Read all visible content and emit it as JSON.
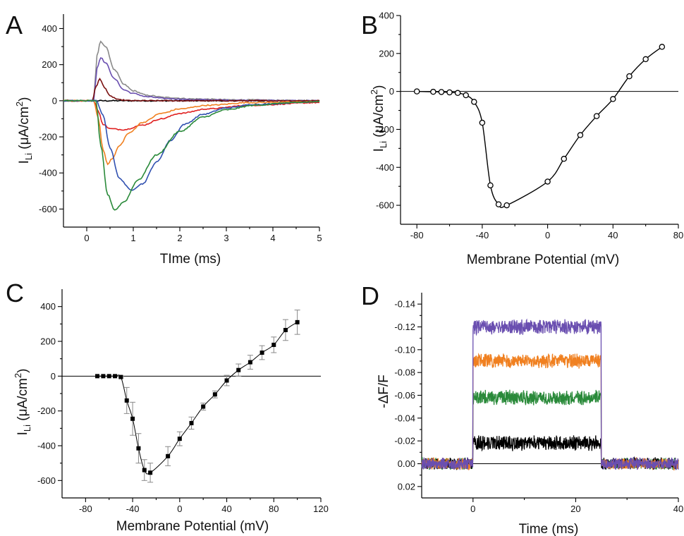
{
  "chart_data": [
    {
      "id": "A",
      "type": "line",
      "panel_label": "A",
      "xlabel": "TIme (ms)",
      "ylabel": "I",
      "ylabel_sub": "Li",
      "ylabel_unit": "(μA/cm",
      "ylabel_sup": "2",
      "ylabel_close": ")",
      "xlim": [
        -0.5,
        5
      ],
      "ylim": [
        -700,
        480
      ],
      "x_ticks": [
        0,
        1,
        2,
        3,
        4,
        5
      ],
      "y_ticks": [
        -600,
        -400,
        -200,
        0,
        200,
        400
      ],
      "series": [
        {
          "color": "#000000",
          "x": [
            -0.5,
            0.2,
            0.4,
            0.6,
            5
          ],
          "y": [
            0,
            0,
            0,
            0,
            0
          ]
        },
        {
          "color": "#8a8a8a",
          "x": [
            -0.5,
            0.15,
            0.22,
            0.3,
            0.4,
            0.6,
            0.8,
            1.0,
            1.3,
            1.7,
            2.3,
            3.2,
            5
          ],
          "y": [
            0,
            0,
            250,
            330,
            300,
            170,
            90,
            55,
            30,
            18,
            10,
            5,
            0
          ]
        },
        {
          "color": "#6a4fb0",
          "x": [
            -0.5,
            0.15,
            0.22,
            0.3,
            0.4,
            0.6,
            0.8,
            1.0,
            1.3,
            1.7,
            2.3,
            3.2,
            5
          ],
          "y": [
            0,
            0,
            180,
            240,
            210,
            120,
            60,
            40,
            22,
            12,
            6,
            3,
            0
          ]
        },
        {
          "color": "#7a1010",
          "x": [
            -0.5,
            0.12,
            0.2,
            0.28,
            0.38,
            0.5,
            0.7,
            1.0,
            5
          ],
          "y": [
            0,
            0,
            80,
            120,
            75,
            25,
            5,
            0,
            0
          ]
        },
        {
          "color": "#e02020",
          "x": [
            -0.5,
            0.15,
            0.25,
            0.35,
            0.5,
            0.8,
            1.2,
            1.6,
            2.0,
            2.6,
            3.5,
            5
          ],
          "y": [
            0,
            0,
            -60,
            -130,
            -155,
            -160,
            -135,
            -100,
            -70,
            -45,
            -25,
            -10
          ]
        },
        {
          "color": "#f08020",
          "x": [
            -0.5,
            0.15,
            0.25,
            0.35,
            0.45,
            0.55,
            0.7,
            0.9,
            1.2,
            1.6,
            2.0,
            2.6,
            3.5,
            5
          ],
          "y": [
            0,
            0,
            -100,
            -270,
            -350,
            -320,
            -250,
            -180,
            -120,
            -70,
            -45,
            -25,
            -10,
            -5
          ]
        },
        {
          "color": "#3050b0",
          "x": [
            -0.5,
            0.2,
            0.35,
            0.5,
            0.7,
            0.95,
            1.2,
            1.5,
            1.8,
            2.1,
            2.5,
            3.0,
            3.6,
            5
          ],
          "y": [
            0,
            0,
            -80,
            -260,
            -430,
            -495,
            -460,
            -340,
            -220,
            -130,
            -75,
            -40,
            -20,
            -5
          ]
        },
        {
          "color": "#2a8a3a",
          "x": [
            -0.5,
            0.2,
            0.3,
            0.45,
            0.6,
            0.8,
            1.1,
            1.5,
            2.0,
            2.5,
            3.0,
            3.6,
            4.3,
            5
          ],
          "y": [
            0,
            0,
            -250,
            -520,
            -605,
            -560,
            -440,
            -300,
            -170,
            -90,
            -50,
            -25,
            -12,
            -5
          ]
        }
      ]
    },
    {
      "id": "B",
      "type": "scatter",
      "panel_label": "B",
      "xlabel": "Membrane Potential (mV)",
      "ylabel": "I",
      "ylabel_sub": "Li",
      "ylabel_unit": "(μA/cm",
      "ylabel_sup": "2",
      "ylabel_close": ")",
      "xlim": [
        -90,
        80
      ],
      "ylim": [
        -700,
        400
      ],
      "x_ticks": [
        -80,
        -40,
        0,
        40,
        80
      ],
      "x_tick_labels": [
        "-80",
        "-40",
        "0",
        "40",
        "80"
      ],
      "y_ticks": [
        -600,
        -400,
        -200,
        0,
        200,
        400
      ],
      "x": [
        -80,
        -70,
        -65,
        -60,
        -55,
        -50,
        -45,
        -40,
        -35,
        -30,
        -25,
        0,
        10,
        20,
        30,
        40,
        50,
        60,
        70
      ],
      "y": [
        0,
        -2,
        -3,
        -5,
        -8,
        -20,
        -55,
        -165,
        -495,
        -595,
        -600,
        -475,
        -355,
        -230,
        -130,
        -40,
        80,
        170,
        235
      ]
    },
    {
      "id": "C",
      "type": "scatter",
      "panel_label": "C",
      "xlabel": "Membrane Potential (mV)",
      "ylabel": "I",
      "ylabel_sub": "Li",
      "ylabel_unit": "(μA/cm",
      "ylabel_sup": "2",
      "ylabel_close": ")",
      "xlim": [
        -100,
        120
      ],
      "ylim": [
        -700,
        500
      ],
      "x_ticks": [
        -80,
        -40,
        0,
        40,
        80,
        120
      ],
      "y_ticks": [
        -600,
        -400,
        -200,
        0,
        200,
        400
      ],
      "x": [
        -70,
        -65,
        -60,
        -55,
        -50,
        -45,
        -40,
        -35,
        -30,
        -25,
        -10,
        0,
        10,
        20,
        30,
        40,
        50,
        60,
        70,
        80,
        90,
        100
      ],
      "y": [
        0,
        0,
        0,
        0,
        -5,
        -140,
        -245,
        -415,
        -540,
        -555,
        -460,
        -360,
        -270,
        -175,
        -105,
        -25,
        35,
        80,
        135,
        180,
        265,
        310
      ],
      "err": [
        0,
        0,
        0,
        0,
        5,
        75,
        95,
        85,
        60,
        55,
        55,
        40,
        35,
        20,
        20,
        30,
        35,
        40,
        40,
        45,
        60,
        70
      ]
    },
    {
      "id": "D",
      "type": "line",
      "panel_label": "D",
      "xlabel": "Time (ms)",
      "ylabel": "-ΔF/F",
      "xlim": [
        -10,
        40
      ],
      "ylim": [
        0.03,
        -0.15
      ],
      "x_ticks": [
        0,
        20,
        40
      ],
      "y_ticks": [
        0.02,
        0.0,
        -0.02,
        -0.04,
        -0.06,
        -0.08,
        -0.1,
        -0.12,
        -0.14
      ],
      "y_tick_labels": [
        "0.02",
        "0.00",
        "-0.02",
        "-0.04",
        "-0.06",
        "-0.08",
        "-0.10",
        "-0.12",
        "-0.14"
      ],
      "series": [
        {
          "color": "#2a8a3a",
          "level": -0.058
        },
        {
          "color": "#000000",
          "level": -0.018
        },
        {
          "color": "#f08020",
          "level": -0.09
        },
        {
          "color": "#6a4fb0",
          "level": -0.12
        }
      ],
      "pulse": [
        0,
        25
      ]
    }
  ]
}
